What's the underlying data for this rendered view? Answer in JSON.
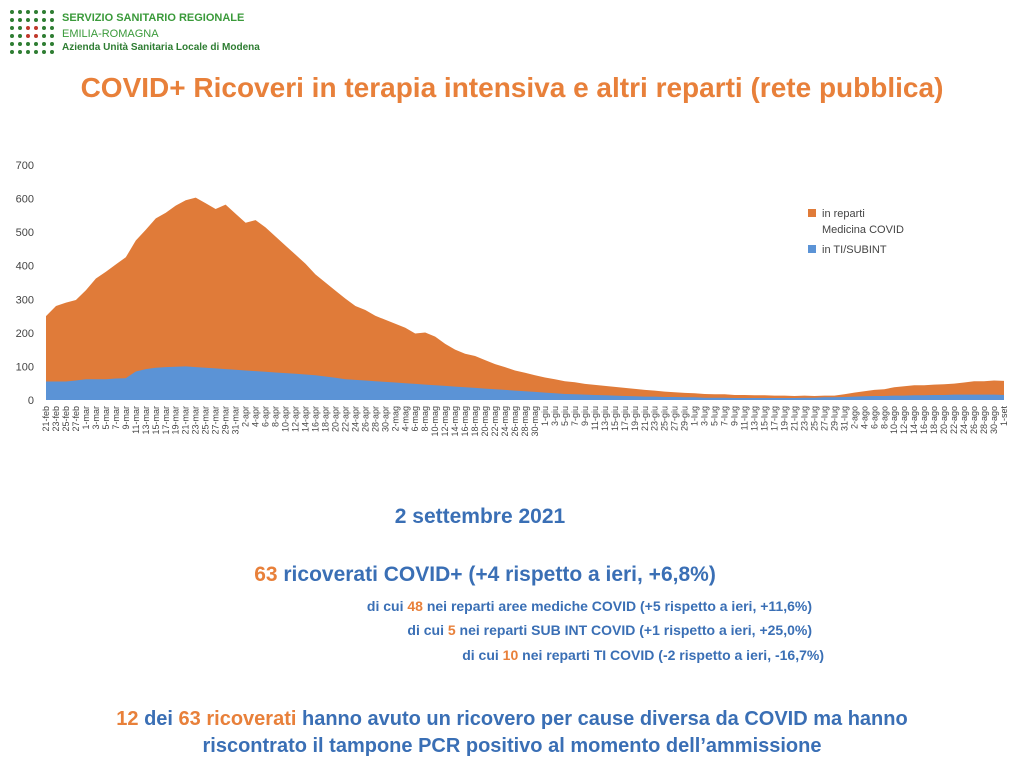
{
  "header": {
    "org_line1": "SERVIZIO SANITARIO REGIONALE",
    "org_line2": "EMILIA-ROMAGNA",
    "org_line3": "Azienda Unità Sanitaria Locale di Modena",
    "logo_colors": [
      "#2e7d32",
      "#c0392b"
    ]
  },
  "title": "COVID+ Ricoveri in terapia intensiva e altri reparti (rete pubblica)",
  "colors": {
    "orange": "#e07b39",
    "blue": "#5b93d6",
    "title": "#e8803a",
    "text_blue": "#3a6fb5"
  },
  "chart_data": {
    "type": "area",
    "stacked": true,
    "ylim": [
      0,
      700
    ],
    "yticks": [
      0,
      100,
      200,
      300,
      400,
      500,
      600,
      700
    ],
    "grid": false,
    "legend_position": "right",
    "x_labels": [
      "21-feb",
      "23-feb",
      "25-feb",
      "27-feb",
      "1-mar",
      "3-mar",
      "5-mar",
      "7-mar",
      "9-mar",
      "11-mar",
      "13-mar",
      "15-mar",
      "17-mar",
      "19-mar",
      "21-mar",
      "23-mar",
      "25-mar",
      "27-mar",
      "29-mar",
      "31-mar",
      "2-apr",
      "4-apr",
      "6-apr",
      "8-apr",
      "10-apr",
      "12-apr",
      "14-apr",
      "16-apr",
      "18-apr",
      "20-apr",
      "22-apr",
      "24-apr",
      "26-apr",
      "28-apr",
      "30-apr",
      "2-mag",
      "4-mag",
      "6-mag",
      "8-mag",
      "10-mag",
      "12-mag",
      "14-mag",
      "16-mag",
      "18-mag",
      "20-mag",
      "22-mag",
      "24-mag",
      "26-mag",
      "28-mag",
      "30-mag",
      "1-giu",
      "3-giu",
      "5-giu",
      "7-giu",
      "9-giu",
      "11-giu",
      "13-giu",
      "15-giu",
      "17-giu",
      "19-giu",
      "21-giu",
      "23-giu",
      "25-giu",
      "27-giu",
      "29-giu",
      "1-lug",
      "3-lug",
      "5-lug",
      "7-lug",
      "9-lug",
      "11-lug",
      "13-lug",
      "15-lug",
      "17-lug",
      "19-lug",
      "21-lug",
      "23-lug",
      "25-lug",
      "27-lug",
      "29-lug",
      "31-lug",
      "2-ago",
      "4-ago",
      "6-ago",
      "8-ago",
      "10-ago",
      "12-ago",
      "14-ago",
      "16-ago",
      "18-ago",
      "20-ago",
      "22-ago",
      "24-ago",
      "26-ago",
      "28-ago",
      "30-ago",
      "1-set"
    ],
    "series": [
      {
        "name": "in reparti Medicina COVID",
        "values": [
          195,
          225,
          235,
          240,
          265,
          300,
          320,
          340,
          360,
          390,
          415,
          445,
          460,
          480,
          495,
          505,
          490,
          475,
          490,
          465,
          440,
          450,
          430,
          405,
          380,
          355,
          330,
          300,
          280,
          260,
          240,
          220,
          210,
          195,
          185,
          175,
          165,
          150,
          155,
          145,
          125,
          110,
          100,
          95,
          85,
          75,
          68,
          60,
          55,
          50,
          45,
          42,
          38,
          36,
          32,
          30,
          28,
          26,
          24,
          22,
          20,
          18,
          16,
          14,
          13,
          12,
          11,
          10,
          10,
          9,
          9,
          8,
          8,
          7,
          7,
          6,
          6,
          5,
          5,
          5,
          8,
          12,
          15,
          18,
          20,
          25,
          28,
          30,
          30,
          31,
          32,
          33,
          36,
          40,
          40,
          42,
          42
        ],
        "color": "#e07b39"
      },
      {
        "name": "in TI/SUBINT",
        "values": [
          55,
          55,
          55,
          58,
          62,
          62,
          62,
          64,
          65,
          85,
          92,
          96,
          98,
          99,
          100,
          98,
          96,
          94,
          92,
          90,
          88,
          86,
          84,
          82,
          80,
          78,
          76,
          74,
          70,
          66,
          62,
          60,
          58,
          56,
          54,
          52,
          50,
          48,
          46,
          44,
          42,
          40,
          38,
          36,
          34,
          32,
          30,
          28,
          26,
          24,
          22,
          20,
          18,
          17,
          16,
          15,
          14,
          13,
          12,
          11,
          10,
          10,
          9,
          9,
          8,
          8,
          7,
          7,
          7,
          6,
          6,
          6,
          6,
          6,
          6,
          6,
          7,
          7,
          8,
          8,
          9,
          10,
          11,
          12,
          12,
          13,
          13,
          14,
          14,
          15,
          15,
          16,
          16,
          16,
          16,
          16,
          15
        ],
        "color": "#5b93d6"
      }
    ]
  },
  "summary": {
    "date": "2 settembre 2021",
    "main_number": "63",
    "main_text": " ricoverati COVID+ (+4 rispetto a ieri, +6,8%)",
    "detail1_prefix": "di cui ",
    "detail1_number": "48",
    "detail1_text": " nei reparti aree mediche COVID (+5 rispetto a ieri, +11,6%)",
    "detail2_prefix": "di cui ",
    "detail2_number": "5",
    "detail2_text": " nei reparti SUB INT COVID (+1 rispetto a ieri, +25,0%)",
    "detail3_prefix": "di cui ",
    "detail3_number": "10",
    "detail3_text": " nei reparti TI COVID (-2 rispetto a ieri, -16,7%)"
  },
  "footer": {
    "n1": "12",
    "t1": " dei ",
    "n2": "63",
    "t2": " ",
    "t3": "ricoverati",
    "t4": " hanno avuto un ricovero per cause diversa da COVID ma hanno",
    "line2": "riscontrato il tampone PCR positivo al momento dell’ammissione"
  }
}
